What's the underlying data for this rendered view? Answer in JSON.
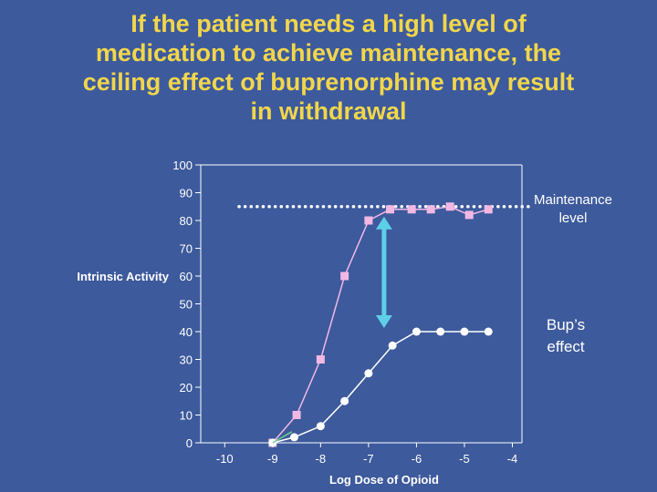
{
  "slide": {
    "title": "If the patient needs a high level of\nmedication to achieve maintenance, the\nceiling effect of buprenorphine may result\nin withdrawal"
  },
  "chart_data": {
    "type": "line",
    "xlabel": "Log Dose of Opioid",
    "ylabel": "Intrinsic Activity",
    "xlim": [
      -10.5,
      -3.8
    ],
    "ylim": [
      0,
      100
    ],
    "x_ticks": [
      "-10",
      "-9",
      "-8",
      "-7",
      "-6",
      "-5",
      "-4"
    ],
    "x_tick_values": [
      -10,
      -9,
      -8,
      -7,
      -6,
      -5,
      -4
    ],
    "y_ticks": [
      "0",
      "10",
      "20",
      "30",
      "40",
      "50",
      "60",
      "70",
      "80",
      "90",
      "100"
    ],
    "y_tick_values": [
      0,
      10,
      20,
      30,
      40,
      50,
      60,
      70,
      80,
      90,
      100
    ],
    "series": [
      {
        "color": "#f2b8e4",
        "marker": "square",
        "points": [
          [
            -9,
            0
          ],
          [
            -8.5,
            10
          ],
          [
            -8,
            30
          ],
          [
            -7.5,
            60
          ],
          [
            -7,
            80
          ],
          [
            -6.55,
            84
          ],
          [
            -6.1,
            84
          ],
          [
            -5.7,
            84
          ],
          [
            -5.3,
            85
          ],
          [
            -4.9,
            82
          ],
          [
            -4.5,
            84
          ]
        ]
      },
      {
        "color": "#ffffff",
        "marker": "circle",
        "points": [
          [
            -9,
            0
          ],
          [
            -8.55,
            2
          ],
          [
            -8,
            6
          ],
          [
            -7.5,
            15
          ],
          [
            -7,
            25
          ],
          [
            -6.5,
            35
          ],
          [
            -6,
            40
          ],
          [
            -5.5,
            40
          ],
          [
            -5,
            40
          ],
          [
            -4.5,
            40
          ]
        ]
      },
      {
        "color": "#6fd08c",
        "marker": "none",
        "points": [
          [
            -9,
            0
          ],
          [
            -8.6,
            4
          ]
        ]
      }
    ],
    "maintenance_level": 84,
    "maintenance_label": "Maintenance\nlevel",
    "bup_effect_label": "Bup’s\neffect",
    "bup_arrow_range": [
      40,
      84
    ],
    "bup_arrow_x": -7,
    "arrow_color": "#5ecfe8",
    "dotted_line_color": "#ffffff"
  }
}
